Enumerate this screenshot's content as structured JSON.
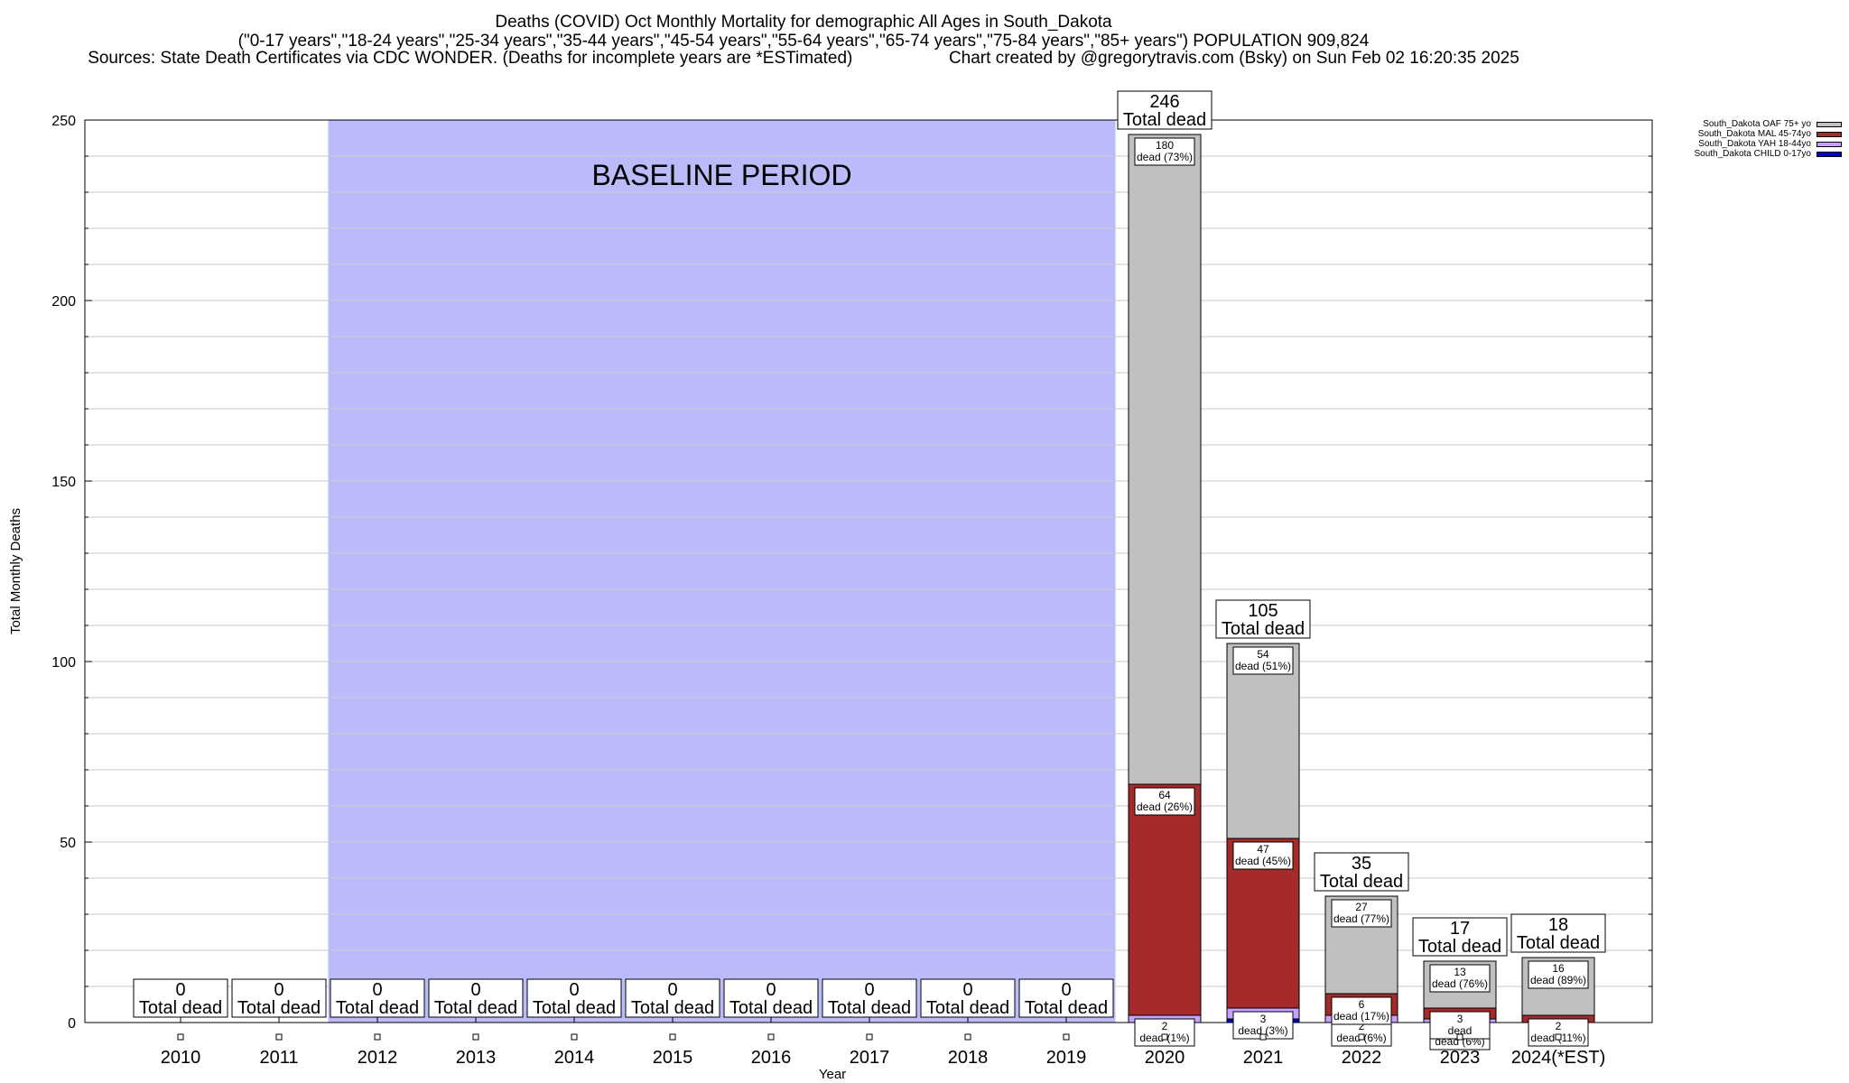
{
  "header": {
    "title": "Deaths (COVID) Oct Monthly Mortality for demographic All Ages in South_Dakota",
    "subtitle": "(\"0-17 years\",\"18-24 years\",\"25-34 years\",\"35-44 years\",\"45-54 years\",\"55-64 years\",\"65-74 years\",\"75-84 years\",\"85+ years\") POPULATION 909,824",
    "sources": "Sources: State Death Certificates via CDC WONDER. (Deaths for incomplete years are *ESTimated)",
    "credit": "Chart created by @gregorytravis.com (Bsky) on Sun Feb 02 16:20:35 2025"
  },
  "chart_data": {
    "type": "bar",
    "stacked": true,
    "xlabel": "Year",
    "ylabel": "Total Monthly Deaths",
    "ylim": [
      0,
      250
    ],
    "yticks": [
      0,
      50,
      100,
      150,
      200,
      250
    ],
    "grid": true,
    "legend_position": "top-right",
    "baseline_label": "BASELINE PERIOD",
    "baseline_range": [
      "2012",
      "2019"
    ],
    "categories": [
      "2010",
      "2011",
      "2012",
      "2013",
      "2014",
      "2015",
      "2016",
      "2017",
      "2018",
      "2019",
      "2020",
      "2021",
      "2022",
      "2023",
      "2024(*EST)"
    ],
    "totals": [
      0,
      0,
      0,
      0,
      0,
      0,
      0,
      0,
      0,
      0,
      246,
      105,
      35,
      17,
      18
    ],
    "total_suffix": "Total dead",
    "segment_suffix": "dead",
    "series": [
      {
        "name": "South_Dakota CHILD 0-17yo",
        "color": "#0000cc",
        "values": [
          0,
          0,
          0,
          0,
          0,
          0,
          0,
          0,
          0,
          0,
          0,
          1,
          0,
          0,
          0
        ],
        "pct": []
      },
      {
        "name": "South_Dakota YAH 18-44yo",
        "color": "#c8a0ff",
        "values": [
          0,
          0,
          0,
          0,
          0,
          0,
          0,
          0,
          0,
          0,
          2,
          3,
          2,
          1,
          0
        ],
        "pct": [
          "",
          "",
          "",
          "",
          "",
          "",
          "",
          "",
          "",
          "",
          "1%",
          "3%",
          "6%",
          "6%",
          ""
        ]
      },
      {
        "name": "South_Dakota MAL 45-74yo",
        "color": "#a52a2a",
        "values": [
          0,
          0,
          0,
          0,
          0,
          0,
          0,
          0,
          0,
          0,
          64,
          47,
          6,
          3,
          2
        ],
        "pct": [
          "",
          "",
          "",
          "",
          "",
          "",
          "",
          "",
          "",
          "",
          "26%",
          "45%",
          "17%",
          "",
          "11%"
        ]
      },
      {
        "name": "South_Dakota OAF 75+ yo",
        "color": "#c0c0c0",
        "values": [
          0,
          0,
          0,
          0,
          0,
          0,
          0,
          0,
          0,
          0,
          180,
          54,
          27,
          13,
          16
        ],
        "pct": [
          "",
          "",
          "",
          "",
          "",
          "",
          "",
          "",
          "",
          "",
          "73%",
          "51%",
          "77%",
          "76%",
          "89%"
        ]
      }
    ]
  }
}
